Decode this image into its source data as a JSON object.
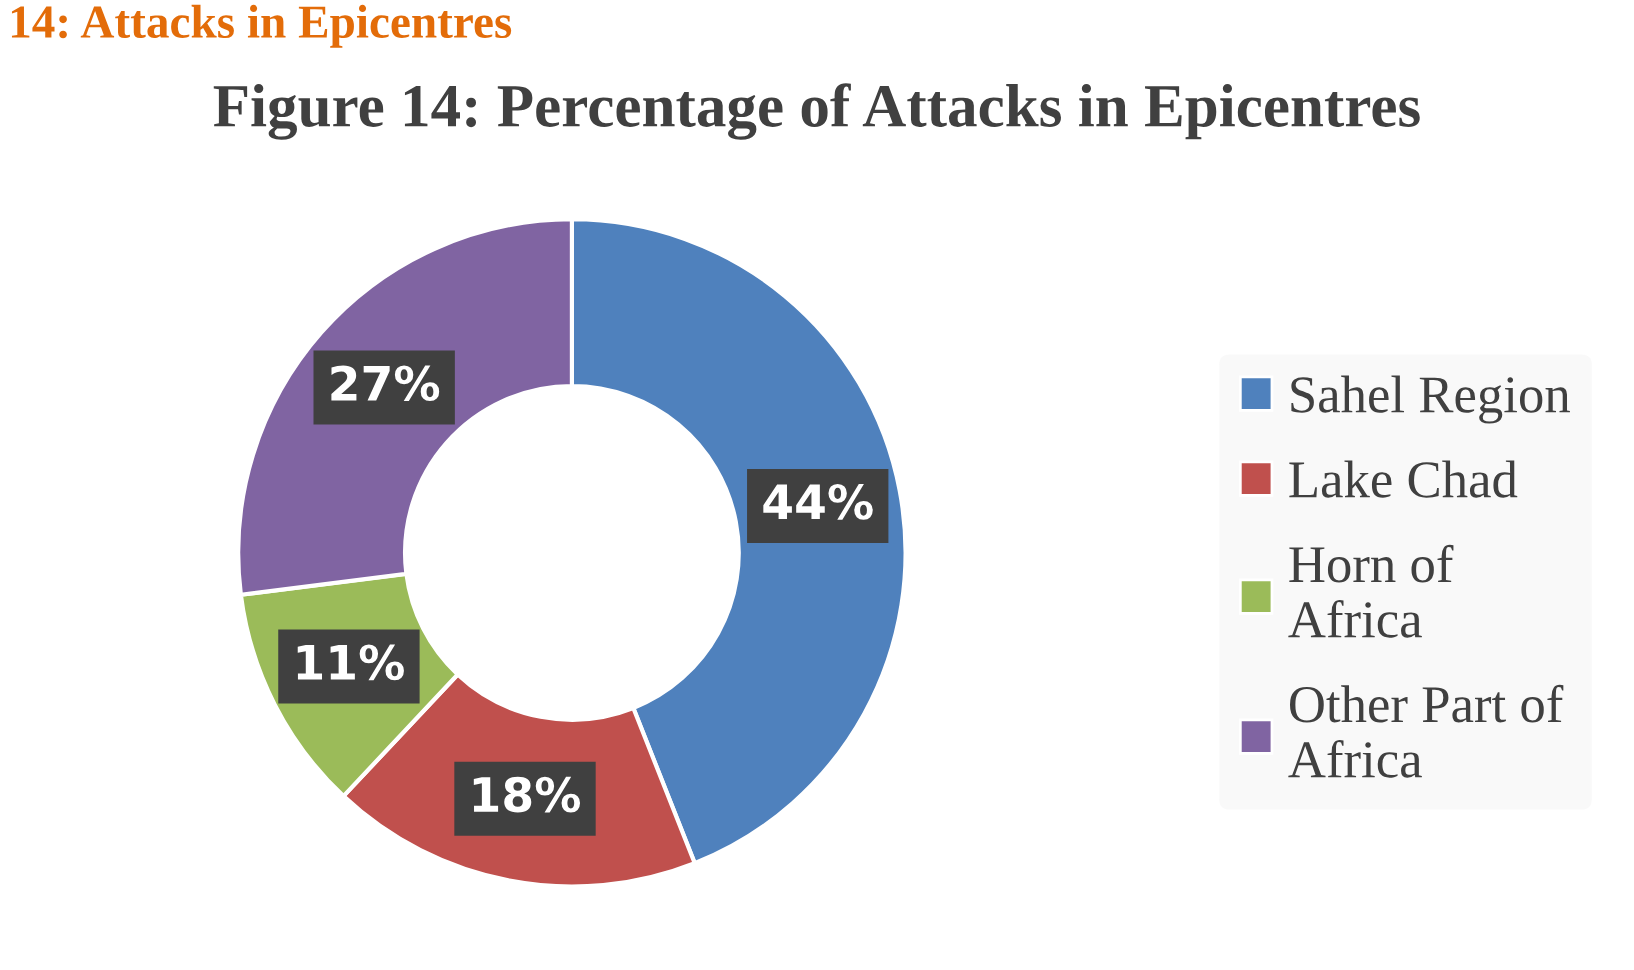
{
  "chart_data": {
    "type": "donut",
    "title": "Figure 14: Percentage of Attacks in Epicentres",
    "annotations": [
      "14: Attacks in Epicentres"
    ],
    "categories": [
      "Sahel Region",
      "Lake Chad",
      "Horn of\nAfrica",
      "Other Part of\nAfrica"
    ],
    "values": [
      44,
      18,
      11,
      27
    ],
    "colors": [
      "#4f81bd",
      "#c0504d",
      "#9bbb59",
      "#8064a2"
    ],
    "value_labels": [
      "44%",
      "18%",
      "11%",
      "27%"
    ],
    "legend": "right"
  }
}
